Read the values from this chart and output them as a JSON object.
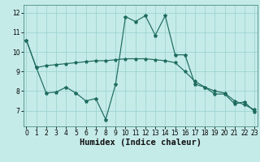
{
  "xlabel": "Humidex (Indice chaleur)",
  "background_color": "#c5ebe9",
  "grid_color": "#9dd4d2",
  "line_color": "#1e6b5e",
  "x": [
    0,
    1,
    2,
    3,
    4,
    5,
    6,
    7,
    8,
    9,
    10,
    11,
    12,
    13,
    14,
    15,
    16,
    17,
    18,
    19,
    20,
    21,
    22,
    23
  ],
  "y_jagged": [
    10.6,
    9.2,
    7.9,
    7.95,
    8.2,
    7.9,
    7.5,
    7.62,
    6.55,
    8.35,
    11.8,
    11.55,
    11.85,
    10.85,
    11.85,
    9.85,
    9.85,
    8.35,
    8.2,
    7.85,
    7.85,
    7.35,
    7.45,
    6.95
  ],
  "y_smooth": [
    10.6,
    9.2,
    9.3,
    9.35,
    9.4,
    9.45,
    9.5,
    9.55,
    9.55,
    9.6,
    9.65,
    9.65,
    9.65,
    9.6,
    9.55,
    9.45,
    9.0,
    8.5,
    8.2,
    8.0,
    7.9,
    7.5,
    7.3,
    7.05
  ],
  "ylim": [
    6.2,
    12.4
  ],
  "yticks": [
    7,
    8,
    9,
    10,
    11,
    12
  ],
  "xticks": [
    0,
    1,
    2,
    3,
    4,
    5,
    6,
    7,
    8,
    9,
    10,
    11,
    12,
    13,
    14,
    15,
    16,
    17,
    18,
    19,
    20,
    21,
    22,
    23
  ],
  "tick_fontsize": 5.5,
  "label_fontsize": 7.5
}
